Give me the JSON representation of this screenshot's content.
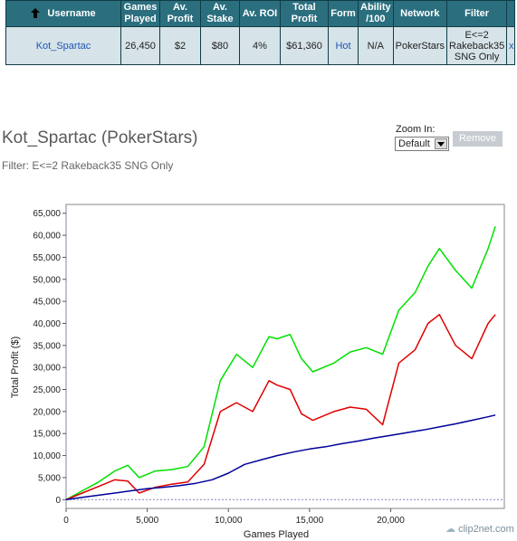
{
  "table": {
    "headers": [
      "Username",
      "Games Played",
      "Av. Profit",
      "Av. Stake",
      "Av. ROI",
      "Total Profit",
      "Form",
      "Ability /100",
      "Network",
      "Filter"
    ],
    "row": {
      "username": "Kot_Spartac",
      "games_played": "26,450",
      "av_profit": "$2",
      "av_stake": "$80",
      "av_roi": "4%",
      "total_profit": "$61,360",
      "form": "Hot",
      "ability": "N/A",
      "network": "PokerStars",
      "filter": "E<=2 Rakeback35 SNG Only",
      "remove_filter": "x"
    }
  },
  "heading": {
    "title": "Kot_Spartac (PokerStars)",
    "filter": "Filter: E<=2 Rakeback35 SNG Only"
  },
  "zoom": {
    "label": "Zoom In:",
    "selected": "Default"
  },
  "remove_button": "Remove",
  "watermark": "clip2net.com",
  "chart_data": {
    "type": "line",
    "xlabel": "Games Played",
    "ylabel": "Total Profit ($)",
    "xlim": [
      0,
      27000
    ],
    "ylim": [
      -2000,
      67000
    ],
    "x_ticks": [
      0,
      5000,
      10000,
      15000,
      20000
    ],
    "x_tick_labels": [
      "0",
      "5,000",
      "10,000",
      "15,000",
      "20,000"
    ],
    "y_ticks": [
      0,
      5000,
      10000,
      15000,
      20000,
      25000,
      30000,
      35000,
      40000,
      45000,
      50000,
      55000,
      60000,
      65000
    ],
    "y_tick_labels": [
      "0",
      "5,000",
      "10,000",
      "15,000",
      "20,000",
      "25,000",
      "30,000",
      "35,000",
      "40,000",
      "45,000",
      "50,000",
      "55,000",
      "60,000",
      "65,000"
    ],
    "series": [
      {
        "color": "#00e000",
        "x": [
          0,
          1000,
          2000,
          3000,
          3800,
          4500,
          5500,
          6500,
          7500,
          8500,
          9500,
          10500,
          11500,
          12500,
          13000,
          13800,
          14500,
          15200,
          16500,
          17500,
          18500,
          19500,
          20500,
          21500,
          22300,
          23000,
          24000,
          25000,
          26000,
          26450
        ],
        "y": [
          0,
          2000,
          4000,
          6500,
          7800,
          5000,
          6500,
          6800,
          7500,
          12000,
          27000,
          33000,
          30000,
          37000,
          36500,
          37500,
          32000,
          29000,
          31000,
          33500,
          34500,
          33000,
          43000,
          47000,
          53000,
          57000,
          52000,
          48000,
          57000,
          62000
        ]
      },
      {
        "color": "#e00000",
        "x": [
          0,
          1000,
          2000,
          3000,
          3800,
          4500,
          5500,
          6500,
          7500,
          8500,
          9500,
          10500,
          11500,
          12500,
          13000,
          13800,
          14500,
          15200,
          16500,
          17500,
          18500,
          19500,
          20500,
          21500,
          22300,
          23000,
          24000,
          25000,
          26000,
          26450
        ],
        "y": [
          0,
          1500,
          3000,
          4500,
          4200,
          1500,
          2800,
          3500,
          4000,
          8000,
          20000,
          22000,
          20000,
          27000,
          26000,
          25000,
          19500,
          18000,
          20000,
          21000,
          20500,
          17000,
          31000,
          34000,
          40000,
          42000,
          35000,
          32000,
          40000,
          42000
        ]
      },
      {
        "color": "#000099",
        "x": [
          0,
          1000,
          2000,
          3000,
          4000,
          5000,
          6000,
          7000,
          8000,
          9000,
          10000,
          11000,
          12000,
          13000,
          14000,
          15000,
          16000,
          17000,
          18000,
          19000,
          20000,
          21000,
          22000,
          23000,
          24000,
          25000,
          26000,
          26450
        ],
        "y": [
          0,
          500,
          1000,
          1500,
          2000,
          2500,
          2800,
          3200,
          3700,
          4500,
          6000,
          8000,
          9000,
          10000,
          10800,
          11500,
          12000,
          12700,
          13300,
          14000,
          14600,
          15200,
          15800,
          16500,
          17200,
          18000,
          18800,
          19200
        ]
      }
    ]
  }
}
